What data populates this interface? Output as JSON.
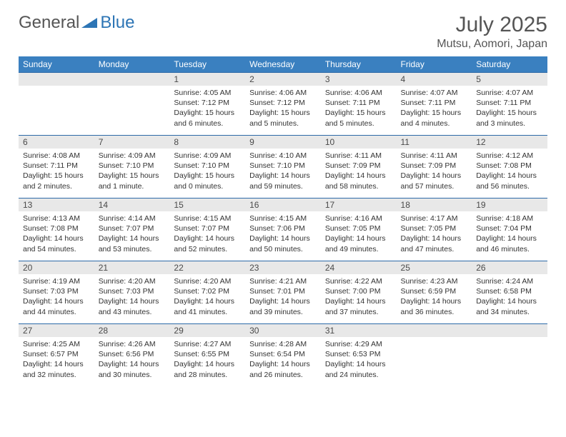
{
  "brand": {
    "name_part1": "General",
    "name_part2": "Blue"
  },
  "title": "July 2025",
  "location": "Mutsu, Aomori, Japan",
  "colors": {
    "header_bg": "#3a80c0",
    "header_text": "#ffffff",
    "daynum_bg": "#e8e8e8",
    "row_border": "#2d6aa8",
    "body_text": "#333333",
    "title_text": "#555555",
    "brand_accent": "#2d75b5",
    "page_bg": "#ffffff"
  },
  "typography": {
    "title_fontsize": 30,
    "location_fontsize": 16,
    "header_fontsize": 12,
    "daynum_fontsize": 12,
    "body_fontsize": 10.5,
    "font_family": "Arial"
  },
  "layout": {
    "columns": 7,
    "rows": 5,
    "first_weekday": "Sunday"
  },
  "weekdays": [
    "Sunday",
    "Monday",
    "Tuesday",
    "Wednesday",
    "Thursday",
    "Friday",
    "Saturday"
  ],
  "startOffset": 2,
  "days": [
    {
      "n": 1,
      "sunrise": "4:05 AM",
      "sunset": "7:12 PM",
      "daylight": "15 hours and 6 minutes."
    },
    {
      "n": 2,
      "sunrise": "4:06 AM",
      "sunset": "7:12 PM",
      "daylight": "15 hours and 5 minutes."
    },
    {
      "n": 3,
      "sunrise": "4:06 AM",
      "sunset": "7:11 PM",
      "daylight": "15 hours and 5 minutes."
    },
    {
      "n": 4,
      "sunrise": "4:07 AM",
      "sunset": "7:11 PM",
      "daylight": "15 hours and 4 minutes."
    },
    {
      "n": 5,
      "sunrise": "4:07 AM",
      "sunset": "7:11 PM",
      "daylight": "15 hours and 3 minutes."
    },
    {
      "n": 6,
      "sunrise": "4:08 AM",
      "sunset": "7:11 PM",
      "daylight": "15 hours and 2 minutes."
    },
    {
      "n": 7,
      "sunrise": "4:09 AM",
      "sunset": "7:10 PM",
      "daylight": "15 hours and 1 minute."
    },
    {
      "n": 8,
      "sunrise": "4:09 AM",
      "sunset": "7:10 PM",
      "daylight": "15 hours and 0 minutes."
    },
    {
      "n": 9,
      "sunrise": "4:10 AM",
      "sunset": "7:10 PM",
      "daylight": "14 hours and 59 minutes."
    },
    {
      "n": 10,
      "sunrise": "4:11 AM",
      "sunset": "7:09 PM",
      "daylight": "14 hours and 58 minutes."
    },
    {
      "n": 11,
      "sunrise": "4:11 AM",
      "sunset": "7:09 PM",
      "daylight": "14 hours and 57 minutes."
    },
    {
      "n": 12,
      "sunrise": "4:12 AM",
      "sunset": "7:08 PM",
      "daylight": "14 hours and 56 minutes."
    },
    {
      "n": 13,
      "sunrise": "4:13 AM",
      "sunset": "7:08 PM",
      "daylight": "14 hours and 54 minutes."
    },
    {
      "n": 14,
      "sunrise": "4:14 AM",
      "sunset": "7:07 PM",
      "daylight": "14 hours and 53 minutes."
    },
    {
      "n": 15,
      "sunrise": "4:15 AM",
      "sunset": "7:07 PM",
      "daylight": "14 hours and 52 minutes."
    },
    {
      "n": 16,
      "sunrise": "4:15 AM",
      "sunset": "7:06 PM",
      "daylight": "14 hours and 50 minutes."
    },
    {
      "n": 17,
      "sunrise": "4:16 AM",
      "sunset": "7:05 PM",
      "daylight": "14 hours and 49 minutes."
    },
    {
      "n": 18,
      "sunrise": "4:17 AM",
      "sunset": "7:05 PM",
      "daylight": "14 hours and 47 minutes."
    },
    {
      "n": 19,
      "sunrise": "4:18 AM",
      "sunset": "7:04 PM",
      "daylight": "14 hours and 46 minutes."
    },
    {
      "n": 20,
      "sunrise": "4:19 AM",
      "sunset": "7:03 PM",
      "daylight": "14 hours and 44 minutes."
    },
    {
      "n": 21,
      "sunrise": "4:20 AM",
      "sunset": "7:03 PM",
      "daylight": "14 hours and 43 minutes."
    },
    {
      "n": 22,
      "sunrise": "4:20 AM",
      "sunset": "7:02 PM",
      "daylight": "14 hours and 41 minutes."
    },
    {
      "n": 23,
      "sunrise": "4:21 AM",
      "sunset": "7:01 PM",
      "daylight": "14 hours and 39 minutes."
    },
    {
      "n": 24,
      "sunrise": "4:22 AM",
      "sunset": "7:00 PM",
      "daylight": "14 hours and 37 minutes."
    },
    {
      "n": 25,
      "sunrise": "4:23 AM",
      "sunset": "6:59 PM",
      "daylight": "14 hours and 36 minutes."
    },
    {
      "n": 26,
      "sunrise": "4:24 AM",
      "sunset": "6:58 PM",
      "daylight": "14 hours and 34 minutes."
    },
    {
      "n": 27,
      "sunrise": "4:25 AM",
      "sunset": "6:57 PM",
      "daylight": "14 hours and 32 minutes."
    },
    {
      "n": 28,
      "sunrise": "4:26 AM",
      "sunset": "6:56 PM",
      "daylight": "14 hours and 30 minutes."
    },
    {
      "n": 29,
      "sunrise": "4:27 AM",
      "sunset": "6:55 PM",
      "daylight": "14 hours and 28 minutes."
    },
    {
      "n": 30,
      "sunrise": "4:28 AM",
      "sunset": "6:54 PM",
      "daylight": "14 hours and 26 minutes."
    },
    {
      "n": 31,
      "sunrise": "4:29 AM",
      "sunset": "6:53 PM",
      "daylight": "14 hours and 24 minutes."
    }
  ],
  "labels": {
    "sunrise": "Sunrise:",
    "sunset": "Sunset:",
    "daylight": "Daylight:"
  }
}
